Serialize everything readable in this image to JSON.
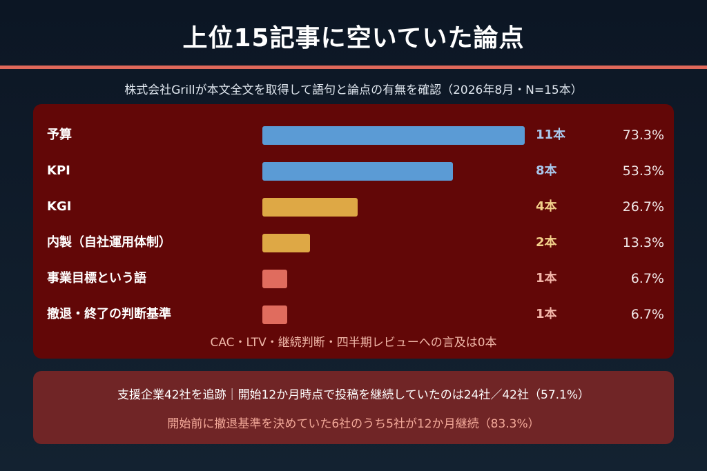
{
  "title": "上位15記事に空いていた論点",
  "subtitle": "株式会社Grillが本文全文を取得して語句と論点の有無を確認（2026年8月・N=15本）",
  "chart_data": {
    "type": "bar",
    "orientation": "horizontal",
    "categories": [
      "予算",
      "KPI",
      "KGI",
      "内製（自社運用体制）",
      "事業目標という語",
      "撤退・終了の判断基準"
    ],
    "values": [
      11,
      8,
      4,
      2,
      1,
      1
    ],
    "count_labels": [
      "11本",
      "8本",
      "4本",
      "2本",
      "1本",
      "1本"
    ],
    "percent_labels": [
      "73.3%",
      "53.3%",
      "26.7%",
      "13.3%",
      "6.7%",
      "6.7%"
    ],
    "xlim": [
      0,
      11
    ],
    "bar_colors": [
      "#5b9bd5",
      "#5b9bd5",
      "#dea845",
      "#dea845",
      "#e06c5e",
      "#e06c5e"
    ],
    "count_colors": [
      "#a9c8ec",
      "#a9c8ec",
      "#f3d08b",
      "#f3d08b",
      "#f3b6a9",
      "#f3b6a9"
    ],
    "note": "CAC・LTV・継続判断・四半期レビューへの言及は0本"
  },
  "stats": {
    "line1": "支援企業42社を追跡｜開始12か月時点で投稿を継続していたのは24社／42社（57.1%）",
    "line2": "開始前に撤退基準を決めていた6社のうち5社が12か月継続（83.3%）"
  },
  "colors": {
    "accent_rule": "#e0685a",
    "chart_panel": "#620707",
    "stats_panel": "#702526"
  }
}
